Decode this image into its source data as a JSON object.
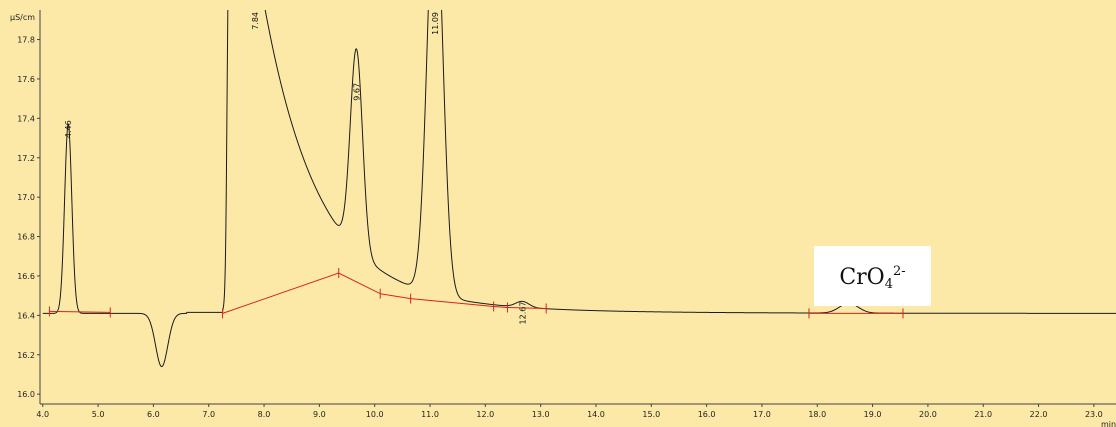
{
  "chart_data": {
    "type": "line",
    "title": "",
    "ylabel": "µS/cm",
    "xlabel": "min",
    "xlim": [
      3.95,
      23.4
    ],
    "ylim": [
      15.95,
      17.95
    ],
    "x_ticks": [
      "4.0",
      "5.0",
      "6.0",
      "7.0",
      "8.0",
      "9.0",
      "10.0",
      "11.0",
      "12.0",
      "13.0",
      "14.0",
      "15.0",
      "16.0",
      "17.0",
      "18.0",
      "19.0",
      "20.0",
      "21.0",
      "22.0",
      "23.0"
    ],
    "y_ticks": [
      "16.0",
      "16.2",
      "16.4",
      "16.6",
      "16.8",
      "17.0",
      "17.2",
      "17.4",
      "17.6",
      "17.8"
    ],
    "grid": false,
    "baseline": 16.41,
    "peaks": [
      {
        "label": "4.46",
        "rt": 4.46,
        "height": 17.37
      },
      {
        "label": "7.84",
        "rt": 7.84,
        "height": 18.5
      },
      {
        "label": "9.67",
        "rt": 9.67,
        "height": 17.56
      },
      {
        "label": "11.09",
        "rt": 11.09,
        "height": 18.5
      },
      {
        "label": "12.67",
        "rt": 12.67,
        "height": 16.44
      },
      {
        "label": "",
        "rt": 18.57,
        "height": 16.46
      }
    ],
    "integration_segments": [
      [
        [
          4.12,
          16.42
        ],
        [
          5.22,
          16.415
        ]
      ],
      [
        [
          7.25,
          16.41
        ],
        [
          9.35,
          16.615
        ],
        [
          10.1,
          16.51
        ],
        [
          10.65,
          16.485
        ],
        [
          12.15,
          16.445
        ],
        [
          12.4,
          16.44
        ],
        [
          13.1,
          16.435
        ]
      ],
      [
        [
          17.85,
          16.41
        ],
        [
          19.55,
          16.41
        ]
      ]
    ],
    "annotation": {
      "base": "CrO",
      "sub": "4",
      "sup": "2-"
    }
  }
}
